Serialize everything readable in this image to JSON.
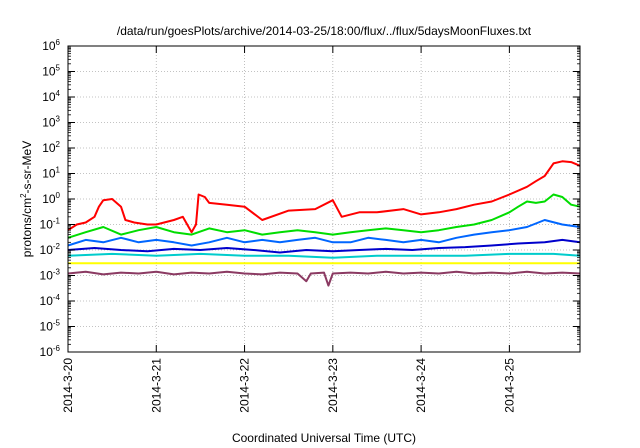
{
  "chart_data": {
    "type": "line",
    "title": "/data/run/goesPlots/archive/2014-03-25/18:00/flux/../flux/5daysMoonFluxes.txt",
    "xlabel": "Coordinated Universal Time (UTC)",
    "ylabel_base": "protons/cm",
    "ylabel_sup": "2",
    "ylabel_rest": "-s-sr-MeV",
    "yscale": "log",
    "ylim_exp": [
      -6,
      6
    ],
    "y_ticks": [
      {
        "base": "10",
        "exp": "-6",
        "e": -6
      },
      {
        "base": "10",
        "exp": "-5",
        "e": -5
      },
      {
        "base": "10",
        "exp": "-4",
        "e": -4
      },
      {
        "base": "10",
        "exp": "-3",
        "e": -3
      },
      {
        "base": "10",
        "exp": "-2",
        "e": -2
      },
      {
        "base": "10",
        "exp": "-1",
        "e": -1
      },
      {
        "base": "10",
        "exp": "0",
        "e": 0
      },
      {
        "base": "10",
        "exp": "1",
        "e": 1
      },
      {
        "base": "10",
        "exp": "2",
        "e": 2
      },
      {
        "base": "10",
        "exp": "3",
        "e": 3
      },
      {
        "base": "10",
        "exp": "4",
        "e": 4
      },
      {
        "base": "10",
        "exp": "5",
        "e": 5
      },
      {
        "base": "10",
        "exp": "6",
        "e": 6
      }
    ],
    "x_range_days": [
      0,
      5.8
    ],
    "x_ticks": [
      {
        "label": "2014-3-20",
        "day": 0
      },
      {
        "label": "2014-3-21",
        "day": 1
      },
      {
        "label": "2014-3-22",
        "day": 2
      },
      {
        "label": "2014-3-23",
        "day": 3
      },
      {
        "label": "2014-3-24",
        "day": 4
      },
      {
        "label": "2014-3-25",
        "day": 5
      }
    ],
    "grid": true,
    "series": [
      {
        "color": "#ff0000",
        "points": [
          [
            0,
            0.06
          ],
          [
            0.1,
            0.1
          ],
          [
            0.2,
            0.12
          ],
          [
            0.3,
            0.2
          ],
          [
            0.35,
            0.5
          ],
          [
            0.4,
            0.9
          ],
          [
            0.5,
            1.0
          ],
          [
            0.6,
            0.5
          ],
          [
            0.65,
            0.15
          ],
          [
            0.75,
            0.12
          ],
          [
            0.9,
            0.1
          ],
          [
            1.0,
            0.1
          ],
          [
            1.2,
            0.15
          ],
          [
            1.3,
            0.2
          ],
          [
            1.4,
            0.05
          ],
          [
            1.45,
            0.1
          ],
          [
            1.48,
            1.5
          ],
          [
            1.55,
            1.2
          ],
          [
            1.6,
            0.7
          ],
          [
            1.8,
            0.6
          ],
          [
            2.0,
            0.5
          ],
          [
            2.2,
            0.15
          ],
          [
            2.5,
            0.35
          ],
          [
            2.8,
            0.4
          ],
          [
            3.0,
            0.9
          ],
          [
            3.1,
            0.2
          ],
          [
            3.3,
            0.3
          ],
          [
            3.5,
            0.3
          ],
          [
            3.8,
            0.4
          ],
          [
            4.0,
            0.25
          ],
          [
            4.2,
            0.3
          ],
          [
            4.4,
            0.4
          ],
          [
            4.6,
            0.6
          ],
          [
            4.8,
            0.8
          ],
          [
            5.0,
            1.5
          ],
          [
            5.2,
            3
          ],
          [
            5.3,
            5
          ],
          [
            5.4,
            8
          ],
          [
            5.5,
            25
          ],
          [
            5.6,
            30
          ],
          [
            5.7,
            28
          ],
          [
            5.8,
            20
          ]
        ]
      },
      {
        "color": "#00dd00",
        "points": [
          [
            0,
            0.03
          ],
          [
            0.2,
            0.05
          ],
          [
            0.4,
            0.08
          ],
          [
            0.6,
            0.04
          ],
          [
            0.8,
            0.06
          ],
          [
            1.0,
            0.08
          ],
          [
            1.2,
            0.05
          ],
          [
            1.4,
            0.04
          ],
          [
            1.6,
            0.07
          ],
          [
            1.8,
            0.05
          ],
          [
            2.0,
            0.06
          ],
          [
            2.2,
            0.04
          ],
          [
            2.4,
            0.05
          ],
          [
            2.6,
            0.06
          ],
          [
            2.8,
            0.05
          ],
          [
            3.0,
            0.04
          ],
          [
            3.2,
            0.05
          ],
          [
            3.4,
            0.06
          ],
          [
            3.6,
            0.07
          ],
          [
            3.8,
            0.06
          ],
          [
            4.0,
            0.05
          ],
          [
            4.2,
            0.06
          ],
          [
            4.4,
            0.08
          ],
          [
            4.6,
            0.1
          ],
          [
            4.8,
            0.15
          ],
          [
            5.0,
            0.3
          ],
          [
            5.1,
            0.5
          ],
          [
            5.2,
            0.8
          ],
          [
            5.3,
            0.7
          ],
          [
            5.4,
            0.8
          ],
          [
            5.5,
            1.5
          ],
          [
            5.6,
            1.2
          ],
          [
            5.7,
            0.6
          ],
          [
            5.8,
            0.5
          ]
        ]
      },
      {
        "color": "#0066ff",
        "points": [
          [
            0,
            0.015
          ],
          [
            0.2,
            0.025
          ],
          [
            0.4,
            0.02
          ],
          [
            0.6,
            0.03
          ],
          [
            0.8,
            0.02
          ],
          [
            1.0,
            0.025
          ],
          [
            1.2,
            0.02
          ],
          [
            1.4,
            0.015
          ],
          [
            1.6,
            0.02
          ],
          [
            1.8,
            0.03
          ],
          [
            2.0,
            0.02
          ],
          [
            2.2,
            0.025
          ],
          [
            2.4,
            0.02
          ],
          [
            2.6,
            0.025
          ],
          [
            2.8,
            0.03
          ],
          [
            3.0,
            0.02
          ],
          [
            3.2,
            0.02
          ],
          [
            3.4,
            0.03
          ],
          [
            3.6,
            0.025
          ],
          [
            3.8,
            0.02
          ],
          [
            4.0,
            0.025
          ],
          [
            4.2,
            0.02
          ],
          [
            4.4,
            0.03
          ],
          [
            4.6,
            0.04
          ],
          [
            4.8,
            0.05
          ],
          [
            5.0,
            0.06
          ],
          [
            5.2,
            0.08
          ],
          [
            5.4,
            0.15
          ],
          [
            5.6,
            0.1
          ],
          [
            5.8,
            0.08
          ]
        ]
      },
      {
        "color": "#0000cc",
        "points": [
          [
            0,
            0.01
          ],
          [
            0.3,
            0.012
          ],
          [
            0.6,
            0.01
          ],
          [
            0.9,
            0.009
          ],
          [
            1.2,
            0.011
          ],
          [
            1.5,
            0.01
          ],
          [
            1.8,
            0.012
          ],
          [
            2.1,
            0.01
          ],
          [
            2.4,
            0.008
          ],
          [
            2.7,
            0.01
          ],
          [
            3.0,
            0.009
          ],
          [
            3.3,
            0.01
          ],
          [
            3.6,
            0.011
          ],
          [
            3.9,
            0.01
          ],
          [
            4.2,
            0.012
          ],
          [
            4.5,
            0.013
          ],
          [
            4.8,
            0.015
          ],
          [
            5.1,
            0.018
          ],
          [
            5.4,
            0.02
          ],
          [
            5.6,
            0.025
          ],
          [
            5.8,
            0.02
          ]
        ]
      },
      {
        "color": "#00cccc",
        "points": [
          [
            0,
            0.006
          ],
          [
            0.5,
            0.007
          ],
          [
            1.0,
            0.006
          ],
          [
            1.5,
            0.007
          ],
          [
            2.0,
            0.006
          ],
          [
            2.5,
            0.006
          ],
          [
            3.0,
            0.005
          ],
          [
            3.5,
            0.006
          ],
          [
            4.0,
            0.006
          ],
          [
            4.5,
            0.006
          ],
          [
            5.0,
            0.007
          ],
          [
            5.5,
            0.007
          ],
          [
            5.8,
            0.006
          ]
        ]
      },
      {
        "color": "#ffff00",
        "points": [
          [
            0,
            0.003
          ],
          [
            1.0,
            0.003
          ],
          [
            2.0,
            0.003
          ],
          [
            3.0,
            0.003
          ],
          [
            4.0,
            0.003
          ],
          [
            5.0,
            0.003
          ],
          [
            5.8,
            0.003
          ]
        ]
      },
      {
        "color": "#8b3a62",
        "points": [
          [
            0,
            0.0012
          ],
          [
            0.2,
            0.0014
          ],
          [
            0.4,
            0.0011
          ],
          [
            0.6,
            0.0013
          ],
          [
            0.8,
            0.0012
          ],
          [
            1.0,
            0.0014
          ],
          [
            1.2,
            0.0011
          ],
          [
            1.4,
            0.0013
          ],
          [
            1.6,
            0.0012
          ],
          [
            1.8,
            0.0014
          ],
          [
            2.0,
            0.0012
          ],
          [
            2.2,
            0.0011
          ],
          [
            2.4,
            0.0013
          ],
          [
            2.6,
            0.0012
          ],
          [
            2.7,
            0.0006
          ],
          [
            2.75,
            0.0012
          ],
          [
            2.9,
            0.0013
          ],
          [
            2.95,
            0.0004
          ],
          [
            3.0,
            0.0012
          ],
          [
            3.2,
            0.0013
          ],
          [
            3.4,
            0.0012
          ],
          [
            3.6,
            0.0014
          ],
          [
            3.8,
            0.0012
          ],
          [
            4.0,
            0.0013
          ],
          [
            4.2,
            0.0012
          ],
          [
            4.4,
            0.0014
          ],
          [
            4.6,
            0.0012
          ],
          [
            4.8,
            0.0013
          ],
          [
            5.0,
            0.0012
          ],
          [
            5.2,
            0.0014
          ],
          [
            5.4,
            0.0012
          ],
          [
            5.6,
            0.0013
          ],
          [
            5.8,
            0.0012
          ]
        ]
      }
    ]
  }
}
